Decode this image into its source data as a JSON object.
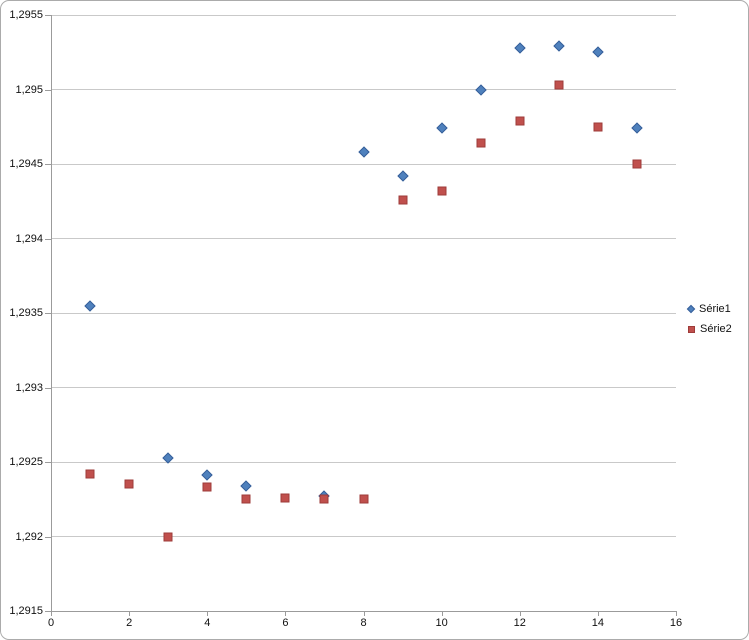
{
  "chart_data": {
    "type": "scatter",
    "title": "",
    "xlabel": "",
    "ylabel": "",
    "grid": "horizontal-only",
    "number_format": "french-comma-decimal",
    "x_axis": {
      "min": 0,
      "max": 16,
      "tick_interval": 2,
      "ticks": [
        {
          "value": 0,
          "label": "0"
        },
        {
          "value": 2,
          "label": "2"
        },
        {
          "value": 4,
          "label": "4"
        },
        {
          "value": 6,
          "label": "6"
        },
        {
          "value": 8,
          "label": "8"
        },
        {
          "value": 10,
          "label": "10"
        },
        {
          "value": 12,
          "label": "12"
        },
        {
          "value": 14,
          "label": "14"
        },
        {
          "value": 16,
          "label": "16"
        }
      ]
    },
    "y_axis": {
      "min": 1.2915,
      "max": 1.2955,
      "tick_interval": 0.0005,
      "ticks": [
        {
          "value": 1.2915,
          "label": "1,2915"
        },
        {
          "value": 1.292,
          "label": "1,292"
        },
        {
          "value": 1.2925,
          "label": "1,2925"
        },
        {
          "value": 1.293,
          "label": "1,293"
        },
        {
          "value": 1.2935,
          "label": "1,2935"
        },
        {
          "value": 1.294,
          "label": "1,294"
        },
        {
          "value": 1.2945,
          "label": "1,2945"
        },
        {
          "value": 1.295,
          "label": "1,295"
        },
        {
          "value": 1.2955,
          "label": "1,2955"
        }
      ]
    },
    "legend": {
      "position": "right-middle",
      "items": [
        {
          "label": "Série1",
          "marker": "diamond",
          "color": "#4F81BD"
        },
        {
          "label": "Série2",
          "marker": "square",
          "color": "#C0504D"
        }
      ]
    },
    "series": [
      {
        "name": "Série1",
        "marker": "diamond",
        "fill": "#4F81BD",
        "border": "#38609A",
        "points": [
          [
            1,
            1.29355
          ],
          [
            3,
            1.29253
          ],
          [
            4,
            1.29241
          ],
          [
            5,
            1.29234
          ],
          [
            7,
            1.29227
          ],
          [
            8,
            1.29458
          ],
          [
            9,
            1.29442
          ],
          [
            10,
            1.29474
          ],
          [
            11,
            1.295
          ],
          [
            12,
            1.29528
          ],
          [
            13,
            1.29529
          ],
          [
            14,
            1.29525
          ],
          [
            15,
            1.29474
          ]
        ],
        "note": "point at x=7 is almost fully hidden behind Série2 square"
      },
      {
        "name": "Série2",
        "marker": "square",
        "fill": "#C0504D",
        "border": "#9E3B39",
        "points": [
          [
            1,
            1.29242
          ],
          [
            2,
            1.29235
          ],
          [
            3,
            1.292
          ],
          [
            4,
            1.29233
          ],
          [
            5,
            1.29225
          ],
          [
            6,
            1.29226
          ],
          [
            7,
            1.29225
          ],
          [
            8,
            1.29225
          ],
          [
            9,
            1.29426
          ],
          [
            10,
            1.29432
          ],
          [
            11,
            1.29464
          ],
          [
            12,
            1.29479
          ],
          [
            13,
            1.29503
          ],
          [
            14,
            1.29475
          ],
          [
            15,
            1.2945
          ]
        ]
      }
    ],
    "colors": {
      "gridline": "#c9c9c9",
      "axis": "#9b9b9b",
      "frame_border": "#ababab",
      "text": "#111111",
      "serie1": "#4F81BD",
      "serie2": "#C0504D"
    }
  }
}
